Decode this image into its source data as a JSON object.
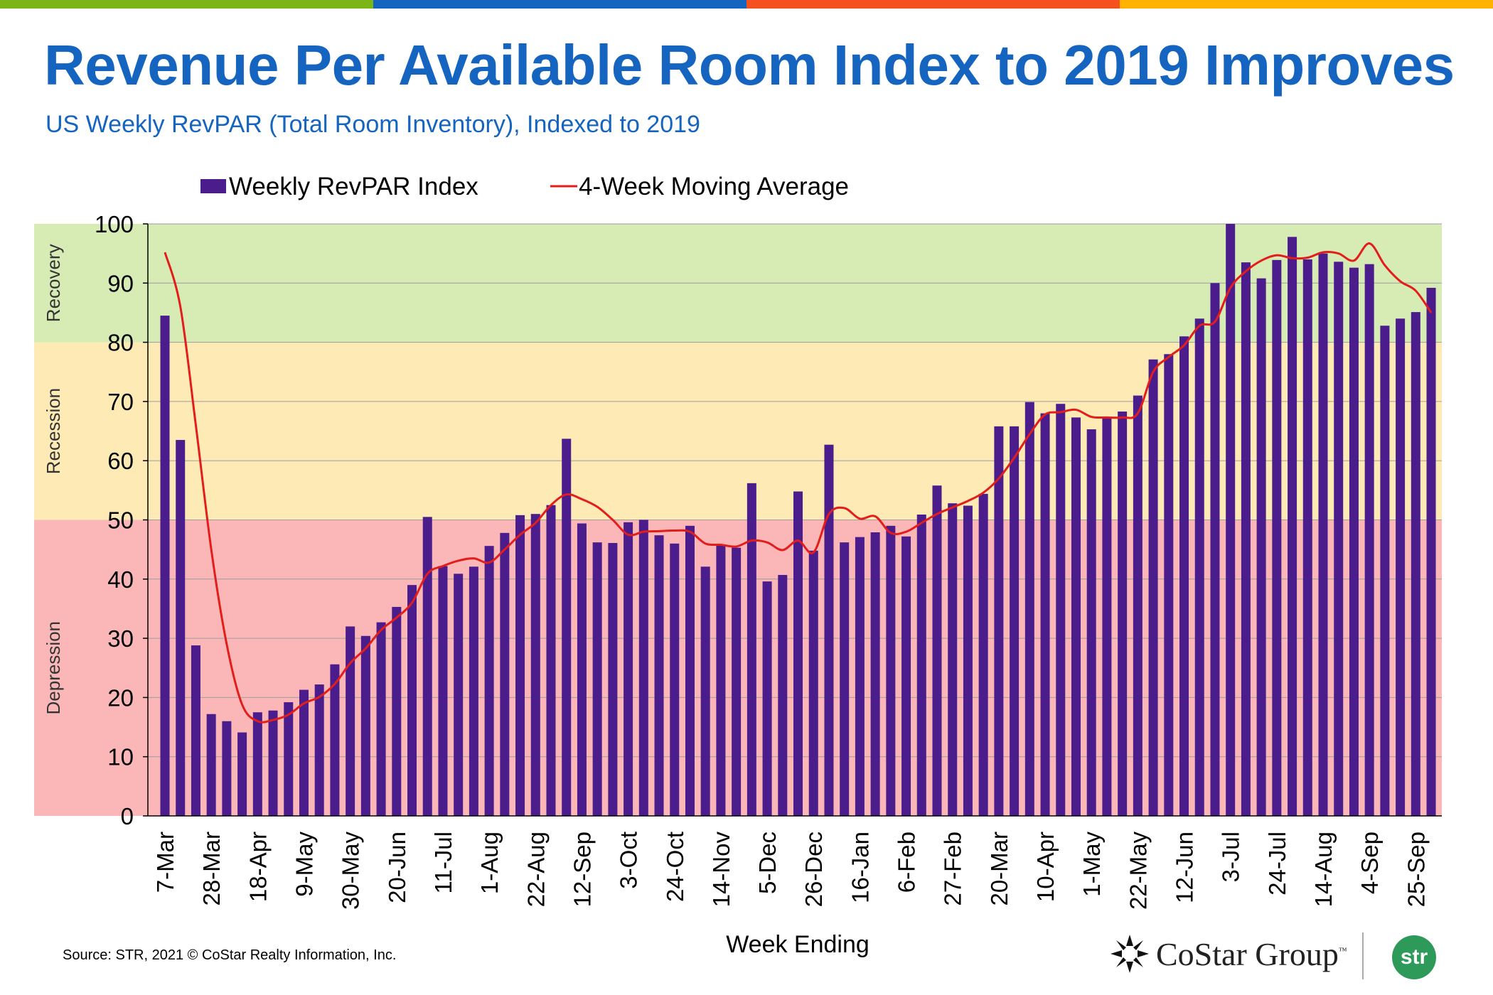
{
  "header": {
    "title": "Revenue Per Available Room Index to 2019 Improves",
    "subtitle": "US Weekly RevPAR (Total Room Inventory), Indexed to 2019"
  },
  "colors": {
    "top_stripes": [
      "#7cb518",
      "#1565c0",
      "#f4511e",
      "#ffb300"
    ],
    "bar": "#4a1c8c",
    "line": "#e31c1c",
    "zone_recovery": "#d7ebb5",
    "zone_recession": "#fdeab4",
    "zone_depression": "#fbb7b7",
    "title": "#1565c0"
  },
  "chart_data": {
    "type": "bar",
    "xlabel": "Week Ending",
    "ylabel": "",
    "ylim": [
      0,
      100
    ],
    "yticks": [
      0,
      10,
      20,
      30,
      40,
      50,
      60,
      70,
      80,
      90,
      100
    ],
    "grid": true,
    "legend_position": "top",
    "tick_labels": [
      "7-Mar",
      "28-Mar",
      "18-Apr",
      "9-May",
      "30-May",
      "20-Jun",
      "11-Jul",
      "1-Aug",
      "22-Aug",
      "12-Sep",
      "3-Oct",
      "24-Oct",
      "14-Nov",
      "5-Dec",
      "26-Dec",
      "16-Jan",
      "6-Feb",
      "27-Feb",
      "20-Mar",
      "10-Apr",
      "1-May",
      "22-May",
      "12-Jun",
      "3-Jul",
      "24-Jul",
      "14-Aug",
      "4-Sep",
      "25-Sep"
    ],
    "tick_every": 3,
    "zones": [
      {
        "label": "Recovery",
        "from": 80,
        "to": 100
      },
      {
        "label": "Recession",
        "from": 50,
        "to": 80
      },
      {
        "label": "Depression",
        "from": 0,
        "to": 50
      }
    ],
    "series": [
      {
        "name": "Weekly RevPAR Index",
        "type": "bar",
        "values": [
          84.5,
          63.5,
          28.8,
          17.2,
          16.0,
          14.1,
          17.5,
          17.8,
          19.2,
          21.3,
          22.2,
          25.6,
          32.0,
          30.4,
          32.7,
          35.3,
          39.0,
          50.5,
          42.2,
          40.9,
          42.1,
          45.6,
          47.8,
          50.8,
          51.0,
          52.5,
          63.7,
          49.4,
          46.2,
          46.1,
          49.6,
          50.0,
          47.4,
          46.0,
          49.0,
          42.1,
          45.7,
          45.3,
          56.2,
          39.6,
          40.7,
          54.8,
          44.8,
          62.7,
          46.2,
          47.1,
          47.9,
          49.0,
          47.2,
          50.9,
          55.8,
          52.8,
          52.4,
          54.4,
          65.8,
          65.8,
          69.9,
          68.0,
          69.6,
          67.3,
          65.3,
          67.3,
          68.3,
          71.0,
          77.1,
          78.0,
          81.0,
          84.0,
          90.0,
          100.5,
          93.5,
          90.8,
          93.9,
          97.8,
          94.0,
          95.0,
          93.6,
          92.6,
          93.2,
          82.8,
          84.0,
          85.1,
          89.2
        ]
      },
      {
        "name": "4-Week Moving Average",
        "type": "line",
        "values": [
          95.2,
          86.0,
          66.0,
          45.0,
          29.0,
          18.8,
          16.0,
          16.2,
          17.1,
          19.0,
          20.1,
          22.3,
          25.8,
          28.3,
          31.4,
          33.5,
          36.0,
          40.9,
          42.2,
          43.1,
          43.5,
          42.8,
          45.0,
          47.5,
          49.5,
          52.5,
          54.3,
          53.5,
          52.2,
          50.0,
          47.5,
          48.0,
          48.1,
          48.2,
          48.0,
          46.0,
          45.8,
          45.5,
          46.5,
          46.2,
          44.9,
          46.5,
          44.5,
          51.0,
          52.0,
          50.2,
          50.6,
          47.8,
          48.0,
          49.5,
          51.0,
          52.1,
          53.2,
          54.6,
          57.0,
          60.5,
          64.5,
          67.8,
          68.2,
          68.6,
          67.4,
          67.3,
          67.3,
          68.0,
          75.0,
          77.5,
          79.5,
          82.8,
          83.5,
          89.2,
          92.0,
          93.8,
          94.7,
          94.2,
          94.3,
          95.2,
          95.0,
          93.8,
          96.7,
          93.0,
          90.3,
          88.7,
          85.0
        ]
      }
    ]
  }
}
